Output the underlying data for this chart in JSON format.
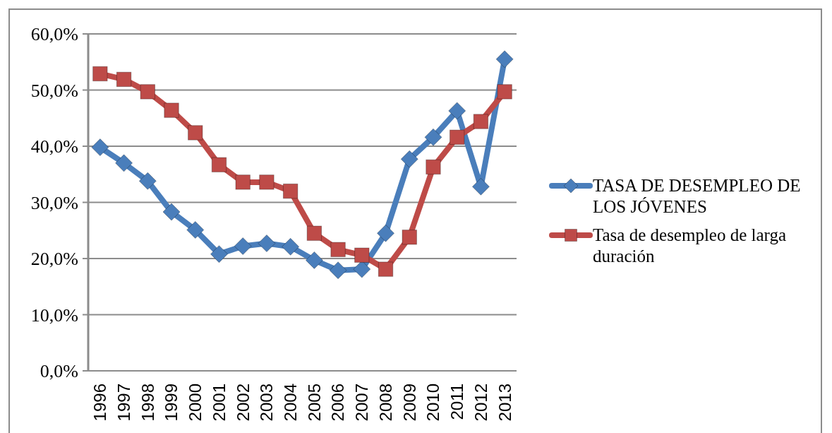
{
  "chart_data": {
    "type": "line",
    "categories": [
      "1996",
      "1997",
      "1998",
      "1999",
      "2000",
      "2001",
      "2002",
      "2003",
      "2004",
      "2005",
      "2006",
      "2007",
      "2008",
      "2009",
      "2010",
      "2011",
      "2012",
      "2013"
    ],
    "series": [
      {
        "name": "TASA DE DESEMPLEO DE LOS JÓVENES",
        "color": "#4a7ebb",
        "marker": "diamond",
        "values": [
          39.8,
          37.0,
          33.8,
          28.3,
          25.1,
          20.8,
          22.2,
          22.7,
          22.1,
          19.7,
          17.9,
          18.1,
          24.5,
          37.7,
          41.6,
          46.3,
          32.8,
          55.5
        ]
      },
      {
        "name": "Tasa de desempleo de larga duración",
        "color": "#be4b48",
        "marker": "square",
        "values": [
          52.9,
          51.9,
          49.7,
          46.4,
          42.4,
          36.7,
          33.6,
          33.6,
          32.0,
          24.5,
          21.6,
          20.6,
          18.1,
          23.8,
          36.3,
          41.6,
          44.4,
          49.7
        ]
      }
    ],
    "ylim": [
      0,
      60
    ],
    "yticks": [
      {
        "value": 0,
        "label": "0,0%"
      },
      {
        "value": 10,
        "label": "10,0%"
      },
      {
        "value": 20,
        "label": "20,0%"
      },
      {
        "value": 30,
        "label": "30,0%"
      },
      {
        "value": 40,
        "label": "40,0%"
      },
      {
        "value": 50,
        "label": "50,0%"
      },
      {
        "value": 60,
        "label": "60,0%"
      }
    ],
    "grid": "y",
    "legend": "right"
  }
}
